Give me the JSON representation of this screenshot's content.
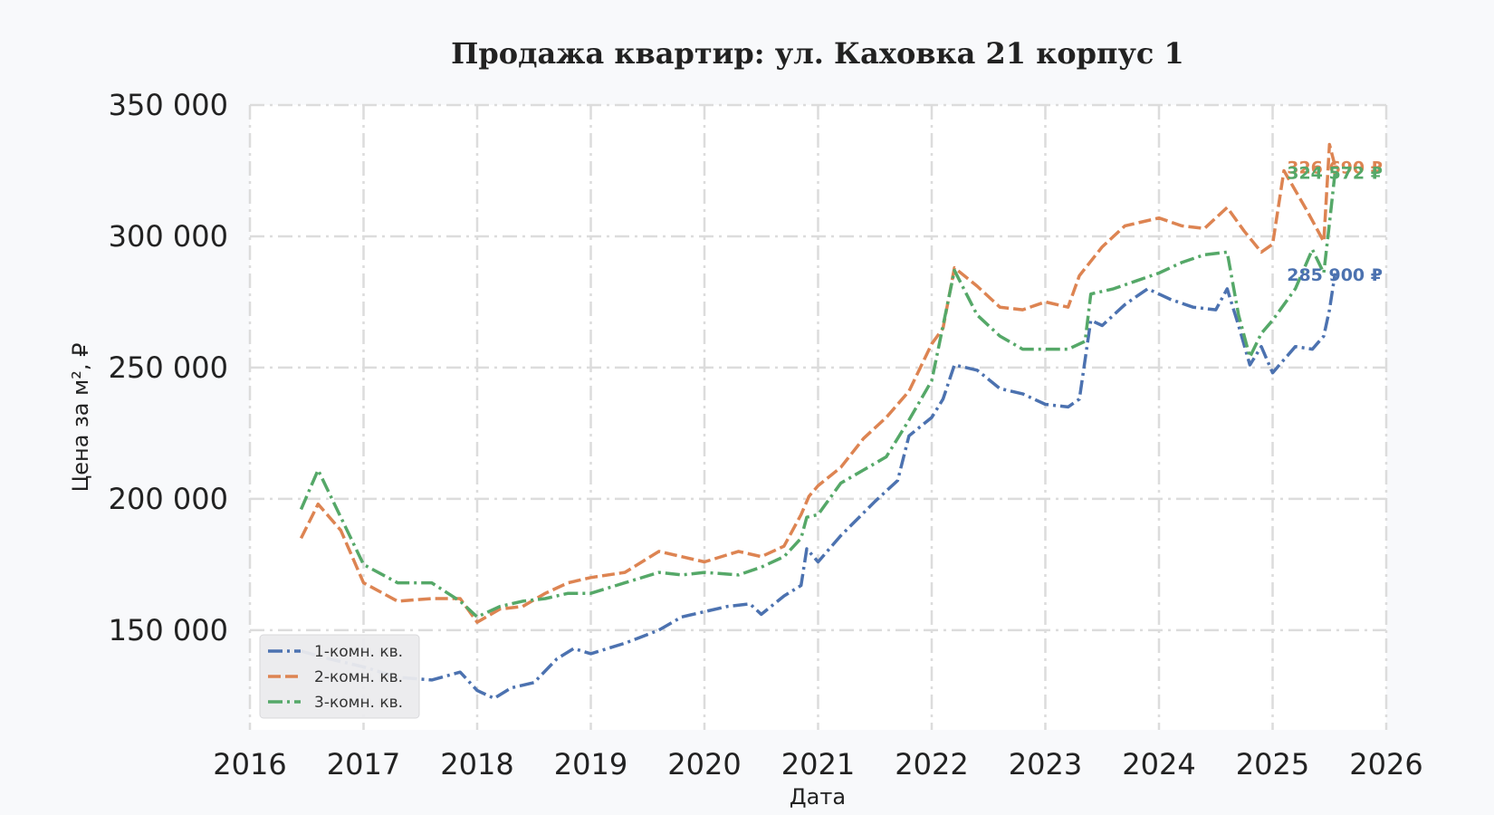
{
  "chart_data": {
    "type": "line",
    "title": "Продажа квартир: ул. Каховка 21 корпус 1",
    "xlabel": "Дата",
    "ylabel": "Цена за м², ₽",
    "xlim": [
      2016,
      2026
    ],
    "ylim": [
      112000,
      350000
    ],
    "x_ticks": [
      "2016",
      "2017",
      "2018",
      "2019",
      "2020",
      "2021",
      "2022",
      "2023",
      "2024",
      "2025",
      "2026"
    ],
    "y_ticks": [
      {
        "value": 150000,
        "label": "150 000"
      },
      {
        "value": 200000,
        "label": "200 000"
      },
      {
        "value": 250000,
        "label": "250 000"
      },
      {
        "value": 300000,
        "label": "300 000"
      },
      {
        "value": 350000,
        "label": "350 000"
      }
    ],
    "grid": true,
    "legend_position": "bottom-left",
    "series": [
      {
        "name": "1-комн. кв.",
        "color": "#4c72b0",
        "dash": "dashdot",
        "end_label": "285 900 ₽",
        "x": [
          2016.45,
          2016.7,
          2017.0,
          2017.3,
          2017.6,
          2017.85,
          2018.0,
          2018.15,
          2018.3,
          2018.5,
          2018.7,
          2018.85,
          2019.0,
          2019.3,
          2019.6,
          2019.8,
          2020.0,
          2020.2,
          2020.4,
          2020.5,
          2020.7,
          2020.85,
          2020.9,
          2021.0,
          2021.2,
          2021.5,
          2021.7,
          2021.8,
          2022.0,
          2022.1,
          2022.2,
          2022.4,
          2022.6,
          2022.8,
          2023.0,
          2023.2,
          2023.3,
          2023.4,
          2023.5,
          2023.7,
          2023.9,
          2024.1,
          2024.3,
          2024.5,
          2024.6,
          2024.7,
          2024.8,
          2024.9,
          2025.0,
          2025.2,
          2025.35,
          2025.45,
          2025.5,
          2025.55
        ],
        "y": [
          142000,
          139000,
          136000,
          132000,
          131000,
          134000,
          127000,
          124000,
          128000,
          130000,
          139000,
          143000,
          141000,
          145000,
          150000,
          155000,
          157000,
          159000,
          160000,
          156000,
          163000,
          167000,
          181000,
          176000,
          186000,
          199000,
          207000,
          224000,
          231000,
          238000,
          251000,
          249000,
          242000,
          240000,
          236000,
          235000,
          238000,
          268000,
          266000,
          274000,
          280000,
          276000,
          273000,
          272000,
          280000,
          266000,
          251000,
          258000,
          248000,
          258000,
          257000,
          262000,
          272000,
          285900
        ]
      },
      {
        "name": "2-комн. кв.",
        "color": "#dd8452",
        "dash": "dash",
        "end_label": "326 690 ₽",
        "x": [
          2016.45,
          2016.6,
          2016.8,
          2017.0,
          2017.3,
          2017.6,
          2017.85,
          2018.0,
          2018.2,
          2018.4,
          2018.6,
          2018.8,
          2019.0,
          2019.3,
          2019.6,
          2019.8,
          2020.0,
          2020.3,
          2020.5,
          2020.7,
          2020.85,
          2020.92,
          2021.0,
          2021.2,
          2021.4,
          2021.6,
          2021.8,
          2022.0,
          2022.1,
          2022.2,
          2022.4,
          2022.6,
          2022.8,
          2023.0,
          2023.2,
          2023.3,
          2023.5,
          2023.7,
          2024.0,
          2024.2,
          2024.4,
          2024.6,
          2024.75,
          2024.9,
          2025.0,
          2025.1,
          2025.3,
          2025.45,
          2025.5,
          2025.55
        ],
        "y": [
          185000,
          198000,
          188000,
          168000,
          161000,
          162000,
          162000,
          153000,
          158000,
          159000,
          164000,
          168000,
          170000,
          172000,
          180000,
          178000,
          176000,
          180000,
          178000,
          182000,
          194000,
          201000,
          205000,
          212000,
          223000,
          231000,
          241000,
          259000,
          265000,
          288000,
          281000,
          273000,
          272000,
          275000,
          273000,
          285000,
          296000,
          304000,
          307000,
          304000,
          303000,
          311000,
          302000,
          294000,
          297000,
          325000,
          310000,
          298000,
          335000,
          326690
        ]
      },
      {
        "name": "3-комн. кв.",
        "color": "#55a868",
        "dash": "dashdot",
        "end_label": "324 572 ₽",
        "x": [
          2016.45,
          2016.6,
          2016.8,
          2017.0,
          2017.3,
          2017.6,
          2017.85,
          2018.0,
          2018.2,
          2018.4,
          2018.6,
          2018.8,
          2019.0,
          2019.3,
          2019.6,
          2019.8,
          2020.0,
          2020.3,
          2020.5,
          2020.7,
          2020.85,
          2020.9,
          2021.0,
          2021.2,
          2021.4,
          2021.6,
          2021.8,
          2022.0,
          2022.2,
          2022.4,
          2022.6,
          2022.8,
          2023.0,
          2023.2,
          2023.35,
          2023.4,
          2023.6,
          2023.8,
          2024.0,
          2024.2,
          2024.4,
          2024.6,
          2024.7,
          2024.8,
          2024.9,
          2025.0,
          2025.2,
          2025.35,
          2025.45,
          2025.5,
          2025.55
        ],
        "y": [
          196000,
          211000,
          193000,
          175000,
          168000,
          168000,
          161000,
          155000,
          159000,
          161000,
          162000,
          164000,
          164000,
          168000,
          172000,
          171000,
          172000,
          171000,
          174000,
          178000,
          185000,
          193000,
          194000,
          206000,
          211000,
          216000,
          230000,
          245000,
          287000,
          270000,
          262000,
          257000,
          257000,
          257000,
          260000,
          278000,
          280000,
          283000,
          286000,
          290000,
          293000,
          294000,
          270000,
          254000,
          263000,
          268000,
          280000,
          295000,
          286000,
          305000,
          324572
        ]
      }
    ]
  }
}
